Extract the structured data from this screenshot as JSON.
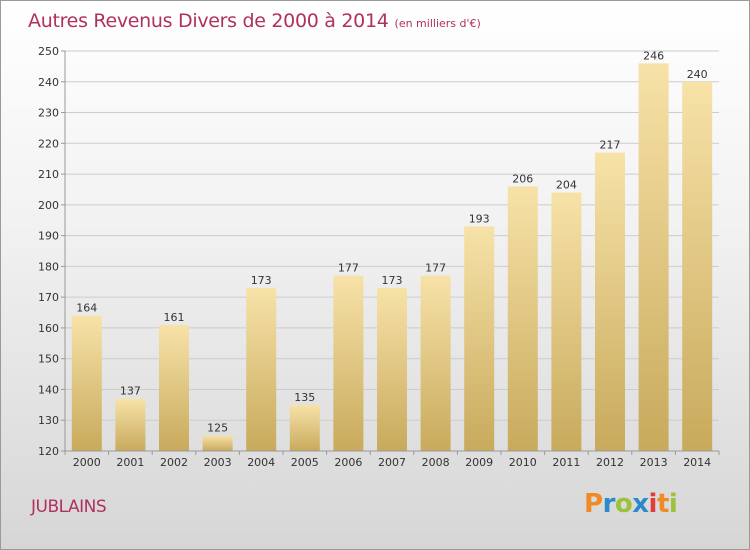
{
  "brand": "Proxiti",
  "commune": "JUBLAINS",
  "colors": {
    "title": "#b03060",
    "bar_top": "#f7e2a8",
    "bar_bottom": "#c8aa5c",
    "grid": "#cccccc",
    "logo_letters": [
      "#f08a24",
      "#2b8ac9",
      "#9cc23a",
      "#2b8ac9",
      "#e23b3b",
      "#f08a24",
      "#9cc23a"
    ]
  },
  "chart_data": {
    "type": "bar",
    "title": "Autres Revenus Divers de 2000 à 2014",
    "subtitle": "(en milliers d'€)",
    "categories": [
      "2000",
      "2001",
      "2002",
      "2003",
      "2004",
      "2005",
      "2006",
      "2007",
      "2008",
      "2009",
      "2010",
      "2011",
      "2012",
      "2013",
      "2014"
    ],
    "values": [
      164,
      137,
      161,
      125,
      173,
      135,
      177,
      173,
      177,
      193,
      206,
      204,
      217,
      246,
      240
    ],
    "ylim": [
      120,
      250
    ],
    "yticks": [
      120,
      130,
      140,
      150,
      160,
      170,
      180,
      190,
      200,
      210,
      220,
      230,
      240,
      250
    ],
    "grid": true,
    "legend": "none"
  }
}
